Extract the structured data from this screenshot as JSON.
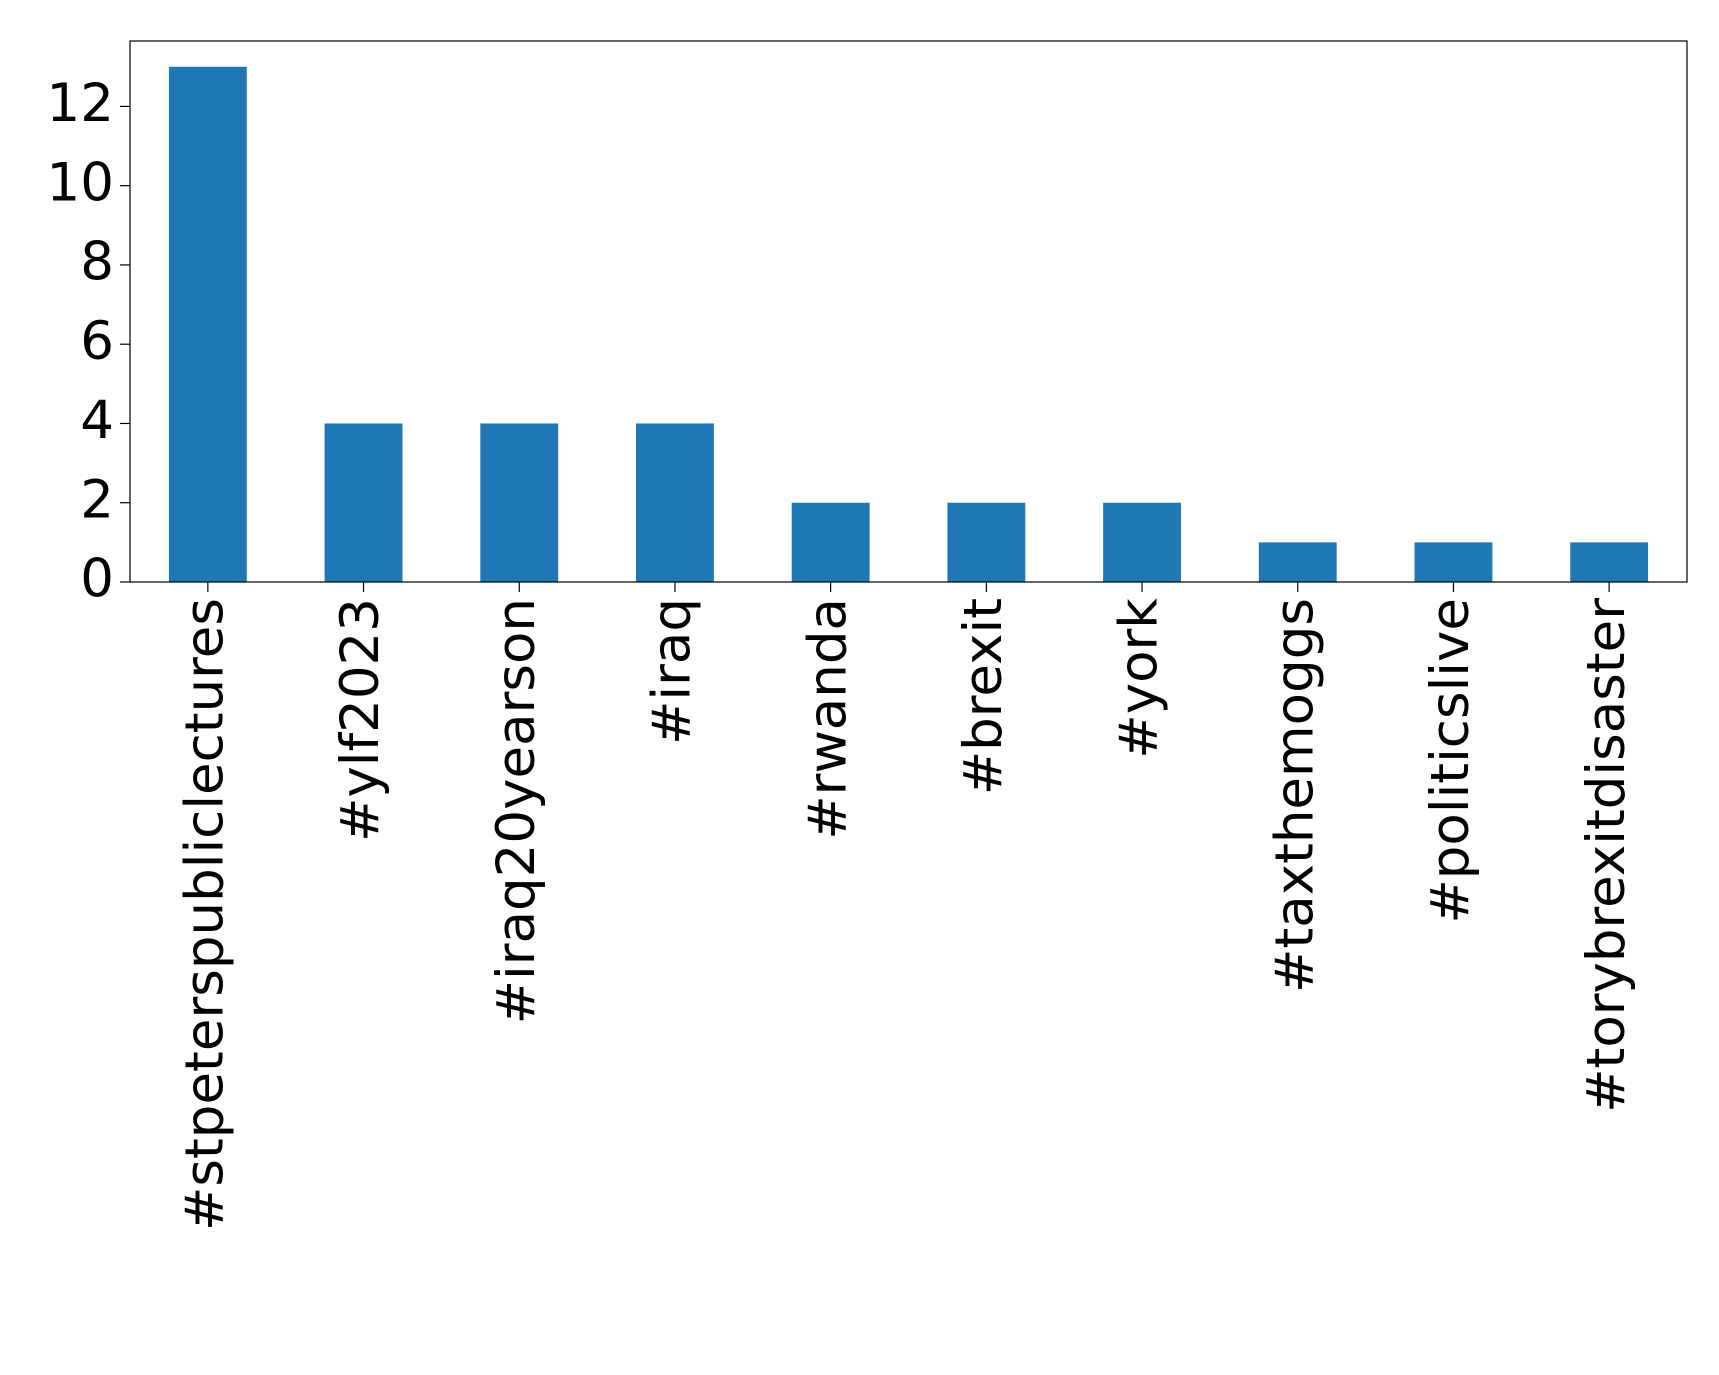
{
  "chart_data": {
    "type": "bar",
    "categories": [
      "#stpeterspubliclectures",
      "#ylf2023",
      "#iraq20yearson",
      "#iraq",
      "#rwanda",
      "#brexit",
      "#york",
      "#taxthemoggs",
      "#politicslive",
      "#torybrexitdisaster"
    ],
    "values": [
      13,
      4,
      4,
      4,
      2,
      2,
      2,
      1,
      1,
      1
    ],
    "color": "#1f77b4",
    "ylim": [
      0,
      13.65
    ],
    "yticks": [
      0,
      2,
      4,
      6,
      8,
      10,
      12
    ],
    "grid": false
  }
}
